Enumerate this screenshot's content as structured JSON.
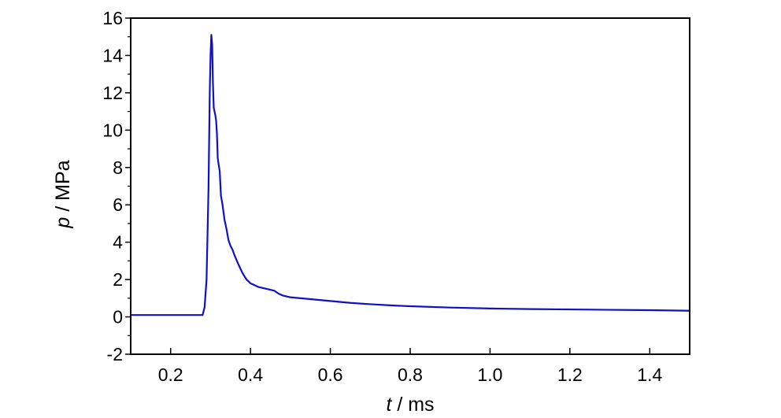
{
  "chart_data": {
    "type": "line",
    "title": "",
    "xlabel": {
      "var": "t",
      "unit": " / ms"
    },
    "ylabel": {
      "var": "p",
      "unit": " / MPa"
    },
    "xlim": [
      0.1,
      1.5
    ],
    "ylim": [
      -2,
      16
    ],
    "xticks": [
      0.2,
      0.4,
      0.6,
      0.8,
      1.0,
      1.2,
      1.4
    ],
    "xtick_labels": [
      "0.2",
      "0.4",
      "0.6",
      "0.8",
      "1.0",
      "1.2",
      "1.4"
    ],
    "yticks": [
      -2,
      0,
      2,
      4,
      6,
      8,
      10,
      12,
      14,
      16
    ],
    "ytick_labels": [
      "-2",
      "0",
      "2",
      "4",
      "6",
      "8",
      "10",
      "12",
      "14",
      "16"
    ],
    "grid": false,
    "legend": false,
    "line_color": "#1010c8",
    "series": [
      {
        "x": [
          0.1,
          0.2,
          0.28,
          0.285,
          0.29,
          0.295,
          0.298,
          0.3,
          0.302,
          0.304,
          0.306,
          0.308,
          0.31,
          0.312,
          0.314,
          0.316,
          0.318,
          0.32,
          0.323,
          0.326,
          0.33,
          0.335,
          0.34,
          0.345,
          0.35,
          0.355,
          0.36,
          0.37,
          0.38,
          0.39,
          0.4,
          0.42,
          0.44,
          0.46,
          0.47,
          0.48,
          0.5,
          0.55,
          0.6,
          0.65,
          0.7,
          0.75,
          0.8,
          0.9,
          1.0,
          1.1,
          1.2,
          1.3,
          1.4,
          1.5
        ],
        "y": [
          0.1,
          0.1,
          0.1,
          0.5,
          2.0,
          7.0,
          12.0,
          14.0,
          15.1,
          14.6,
          12.5,
          11.2,
          11.0,
          10.8,
          10.5,
          9.8,
          8.5,
          8.2,
          7.8,
          6.5,
          6.0,
          5.2,
          4.7,
          4.1,
          3.8,
          3.6,
          3.3,
          2.8,
          2.35,
          2.0,
          1.8,
          1.6,
          1.5,
          1.4,
          1.25,
          1.15,
          1.05,
          0.95,
          0.85,
          0.75,
          0.68,
          0.62,
          0.57,
          0.5,
          0.45,
          0.42,
          0.4,
          0.38,
          0.36,
          0.33
        ]
      }
    ]
  }
}
